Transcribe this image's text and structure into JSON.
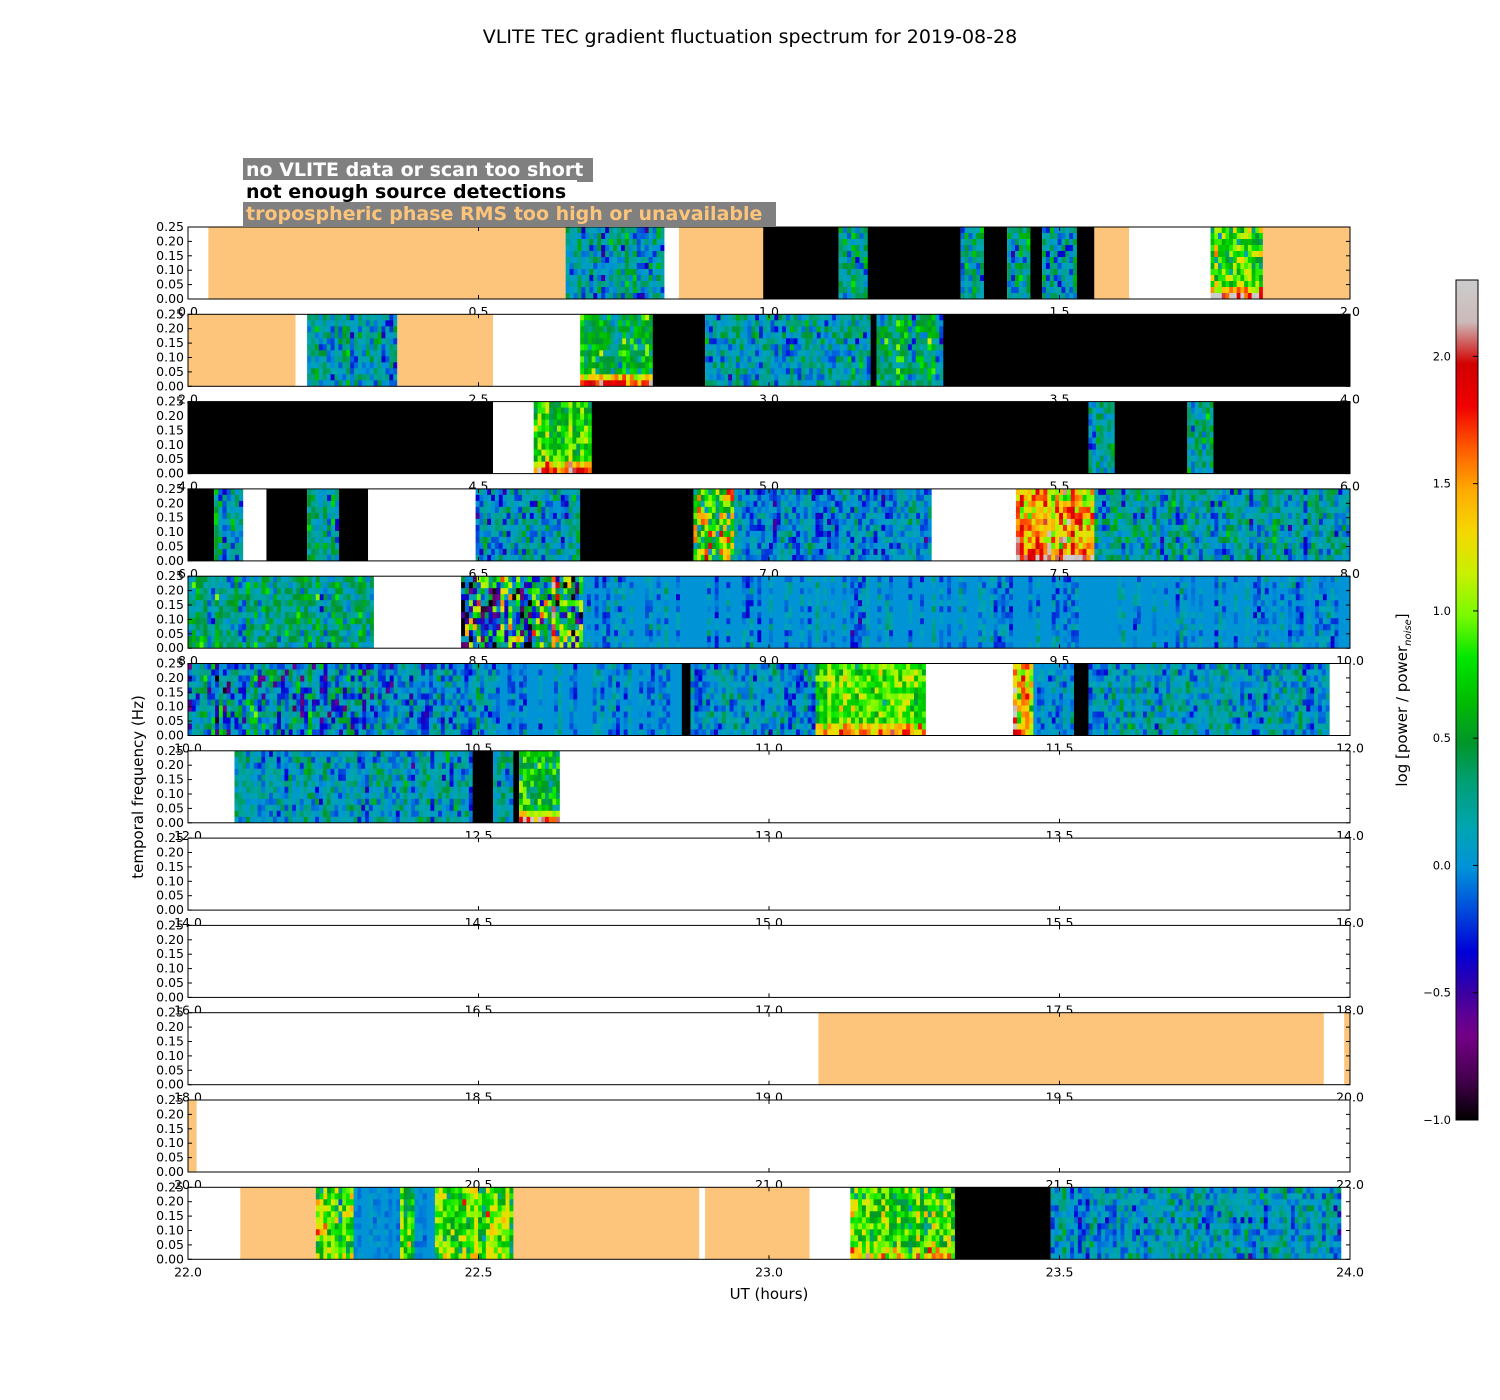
{
  "chart_data": {
    "type": "heatmap",
    "title": "VLITE TEC gradient fluctuation spectrum for 2019-08-28",
    "xlabel": "UT (hours)",
    "ylabel": "temporal frequency (Hz)",
    "colorbar_label": "log [power / power",
    "colorbar_label_sub": "noise",
    "colorbar_label_end": "]",
    "colorbar_range": [
      -1.0,
      2.3
    ],
    "colorbar_ticks": [
      "-1.0",
      "-0.5",
      "0.0",
      "0.5",
      "1.0",
      "1.5",
      "2.0"
    ],
    "colorbar_tick_values": [
      -1.0,
      -0.5,
      0.0,
      0.5,
      1.0,
      1.5,
      2.0
    ],
    "ylim": [
      0,
      0.25
    ],
    "y_ticks": [
      "0.00",
      "0.05",
      "0.10",
      "0.15",
      "0.20",
      "0.25"
    ],
    "y_tick_values": [
      0.0,
      0.05,
      0.1,
      0.15,
      0.2,
      0.25
    ],
    "legend": [
      {
        "text": "no VLITE data or scan too short",
        "text_color": "#ffffff",
        "box_color": "#808080"
      },
      {
        "text": "not enough source detections",
        "text_color": "#000000",
        "box_color": "#ffffff"
      },
      {
        "text": "tropospheric phase RMS too high or unavailable",
        "text_color": "#fdc47b",
        "box_color": "#808080"
      }
    ],
    "category_colors": {
      "no_data": "#ffffff",
      "not_enough_detections": "#000000",
      "tropo_high": "#fdc47b",
      "background_level": "#0092d8"
    },
    "panels": [
      {
        "xlim": [
          0,
          2
        ],
        "x_ticks": [
          "0.0",
          "0.5",
          "1.0",
          "1.5",
          "2.0"
        ],
        "segments": [
          {
            "start": 0.0,
            "end": 0.035,
            "kind": "no_data"
          },
          {
            "start": 0.035,
            "end": 0.65,
            "kind": "tropo_high"
          },
          {
            "start": 0.65,
            "end": 0.82,
            "kind": "spectrum",
            "mean": 0.1,
            "spread": 0.35
          },
          {
            "start": 0.82,
            "end": 0.845,
            "kind": "no_data"
          },
          {
            "start": 0.845,
            "end": 0.99,
            "kind": "tropo_high"
          },
          {
            "start": 0.99,
            "end": 1.12,
            "kind": "not_enough_detections"
          },
          {
            "start": 1.12,
            "end": 1.17,
            "kind": "spectrum",
            "mean": 0.3,
            "spread": 0.4
          },
          {
            "start": 1.17,
            "end": 1.33,
            "kind": "not_enough_detections"
          },
          {
            "start": 1.33,
            "end": 1.37,
            "kind": "spectrum",
            "mean": 0.2,
            "spread": 0.35
          },
          {
            "start": 1.37,
            "end": 1.41,
            "kind": "not_enough_detections"
          },
          {
            "start": 1.41,
            "end": 1.45,
            "kind": "spectrum",
            "mean": 0.25,
            "spread": 0.4
          },
          {
            "start": 1.45,
            "end": 1.47,
            "kind": "not_enough_detections"
          },
          {
            "start": 1.47,
            "end": 1.53,
            "kind": "spectrum",
            "mean": 0.15,
            "spread": 0.35
          },
          {
            "start": 1.53,
            "end": 1.56,
            "kind": "not_enough_detections"
          },
          {
            "start": 1.56,
            "end": 1.62,
            "kind": "tropo_high"
          },
          {
            "start": 1.62,
            "end": 1.76,
            "kind": "no_data"
          },
          {
            "start": 1.76,
            "end": 1.85,
            "kind": "spectrum",
            "mean": 0.75,
            "spread": 0.5,
            "low_boost": 1.2
          },
          {
            "start": 1.85,
            "end": 2.0,
            "kind": "tropo_high"
          }
        ]
      },
      {
        "xlim": [
          2,
          4
        ],
        "x_ticks": [
          "2.0",
          "2.5",
          "3.0",
          "3.5",
          "4.0"
        ],
        "segments": [
          {
            "start": 2.0,
            "end": 2.185,
            "kind": "tropo_high"
          },
          {
            "start": 2.185,
            "end": 2.205,
            "kind": "no_data"
          },
          {
            "start": 2.205,
            "end": 2.36,
            "kind": "spectrum",
            "mean": 0.15,
            "spread": 0.35
          },
          {
            "start": 2.36,
            "end": 2.525,
            "kind": "tropo_high"
          },
          {
            "start": 2.525,
            "end": 2.675,
            "kind": "no_data"
          },
          {
            "start": 2.675,
            "end": 2.8,
            "kind": "spectrum",
            "mean": 0.5,
            "spread": 0.35,
            "low_boost": 1.3
          },
          {
            "start": 2.8,
            "end": 2.89,
            "kind": "not_enough_detections"
          },
          {
            "start": 2.89,
            "end": 3.175,
            "kind": "spectrum",
            "mean": 0.15,
            "spread": 0.35
          },
          {
            "start": 3.175,
            "end": 3.185,
            "kind": "not_enough_detections"
          },
          {
            "start": 3.185,
            "end": 3.3,
            "kind": "spectrum",
            "mean": 0.35,
            "spread": 0.4
          },
          {
            "start": 3.3,
            "end": 4.0,
            "kind": "not_enough_detections"
          }
        ]
      },
      {
        "xlim": [
          4,
          6
        ],
        "x_ticks": [
          "4.0",
          "4.5",
          "5.0",
          "5.5",
          "6.0"
        ],
        "segments": [
          {
            "start": 4.0,
            "end": 4.525,
            "kind": "not_enough_detections"
          },
          {
            "start": 4.525,
            "end": 4.595,
            "kind": "no_data"
          },
          {
            "start": 4.595,
            "end": 4.695,
            "kind": "spectrum",
            "mean": 0.8,
            "spread": 0.35,
            "low_boost": 1.1
          },
          {
            "start": 4.695,
            "end": 5.55,
            "kind": "not_enough_detections"
          },
          {
            "start": 5.55,
            "end": 5.595,
            "kind": "spectrum",
            "mean": 0.15,
            "spread": 0.35
          },
          {
            "start": 5.595,
            "end": 5.72,
            "kind": "not_enough_detections"
          },
          {
            "start": 5.72,
            "end": 5.765,
            "kind": "spectrum",
            "mean": 0.15,
            "spread": 0.35
          },
          {
            "start": 5.765,
            "end": 6.0,
            "kind": "not_enough_detections"
          }
        ]
      },
      {
        "xlim": [
          6,
          8
        ],
        "x_ticks": [
          "6.0",
          "6.5",
          "7.0",
          "7.5",
          "8.0"
        ],
        "segments": [
          {
            "start": 6.0,
            "end": 6.045,
            "kind": "not_enough_detections"
          },
          {
            "start": 6.045,
            "end": 6.095,
            "kind": "spectrum",
            "mean": 0.2,
            "spread": 0.35
          },
          {
            "start": 6.095,
            "end": 6.135,
            "kind": "no_data"
          },
          {
            "start": 6.135,
            "end": 6.205,
            "kind": "not_enough_detections"
          },
          {
            "start": 6.205,
            "end": 6.26,
            "kind": "spectrum",
            "mean": 0.15,
            "spread": 0.35
          },
          {
            "start": 6.26,
            "end": 6.31,
            "kind": "not_enough_detections"
          },
          {
            "start": 6.31,
            "end": 6.495,
            "kind": "no_data"
          },
          {
            "start": 6.495,
            "end": 6.675,
            "kind": "spectrum",
            "mean": 0.1,
            "spread": 0.35
          },
          {
            "start": 6.675,
            "end": 6.87,
            "kind": "not_enough_detections"
          },
          {
            "start": 6.87,
            "end": 6.94,
            "kind": "spectrum",
            "mean": 0.9,
            "spread": 0.8
          },
          {
            "start": 6.94,
            "end": 7.28,
            "kind": "spectrum",
            "mean": 0.0,
            "spread": 0.3
          },
          {
            "start": 7.28,
            "end": 7.425,
            "kind": "no_data"
          },
          {
            "start": 7.425,
            "end": 7.56,
            "kind": "spectrum",
            "mean": 1.4,
            "spread": 0.5,
            "low_boost": 0.6
          },
          {
            "start": 7.56,
            "end": 8.0,
            "kind": "spectrum",
            "mean": 0.15,
            "spread": 0.35
          }
        ]
      },
      {
        "xlim": [
          8,
          10
        ],
        "x_ticks": [
          "8.0",
          "8.5",
          "9.0",
          "9.5",
          "10.0"
        ],
        "segments": [
          {
            "start": 8.0,
            "end": 8.32,
            "kind": "spectrum",
            "mean": 0.3,
            "spread": 0.35
          },
          {
            "start": 8.32,
            "end": 8.47,
            "kind": "no_data"
          },
          {
            "start": 8.47,
            "end": 8.68,
            "kind": "spectrum",
            "mean": 0.3,
            "spread": 1.1
          },
          {
            "start": 8.68,
            "end": 10.0,
            "kind": "spectrum",
            "mean": 0.0,
            "spread": 0.25
          }
        ]
      },
      {
        "xlim": [
          10,
          12
        ],
        "x_ticks": [
          "10.0",
          "10.5",
          "11.0",
          "11.5",
          "12.0"
        ],
        "segments": [
          {
            "start": 10.0,
            "end": 10.32,
            "kind": "spectrum",
            "mean": 0.05,
            "spread": 0.5
          },
          {
            "start": 10.32,
            "end": 10.53,
            "kind": "spectrum",
            "mean": 0.05,
            "spread": 0.35
          },
          {
            "start": 10.53,
            "end": 10.85,
            "kind": "spectrum",
            "mean": 0.0,
            "spread": 0.25
          },
          {
            "start": 10.85,
            "end": 10.865,
            "kind": "not_enough_detections"
          },
          {
            "start": 10.865,
            "end": 11.08,
            "kind": "spectrum",
            "mean": 0.05,
            "spread": 0.3
          },
          {
            "start": 11.08,
            "end": 11.27,
            "kind": "spectrum",
            "mean": 0.85,
            "spread": 0.35,
            "low_boost": 0.6
          },
          {
            "start": 11.27,
            "end": 11.42,
            "kind": "no_data"
          },
          {
            "start": 11.42,
            "end": 11.455,
            "kind": "spectrum",
            "mean": 1.3,
            "spread": 0.6
          },
          {
            "start": 11.455,
            "end": 11.525,
            "kind": "spectrum",
            "mean": 0.0,
            "spread": 0.25
          },
          {
            "start": 11.525,
            "end": 11.55,
            "kind": "not_enough_detections"
          },
          {
            "start": 11.55,
            "end": 11.965,
            "kind": "spectrum",
            "mean": 0.1,
            "spread": 0.3
          },
          {
            "start": 11.965,
            "end": 12.0,
            "kind": "no_data"
          }
        ]
      },
      {
        "xlim": [
          12,
          14
        ],
        "x_ticks": [
          "12.0",
          "12.5",
          "13.0",
          "13.5",
          "14.0"
        ],
        "segments": [
          {
            "start": 12.0,
            "end": 12.08,
            "kind": "no_data"
          },
          {
            "start": 12.08,
            "end": 12.49,
            "kind": "spectrum",
            "mean": 0.1,
            "spread": 0.3
          },
          {
            "start": 12.49,
            "end": 12.525,
            "kind": "not_enough_detections"
          },
          {
            "start": 12.525,
            "end": 12.56,
            "kind": "spectrum",
            "mean": 0.15,
            "spread": 0.3
          },
          {
            "start": 12.56,
            "end": 12.57,
            "kind": "not_enough_detections"
          },
          {
            "start": 12.57,
            "end": 12.64,
            "kind": "spectrum",
            "mean": 0.6,
            "spread": 0.4,
            "low_boost": 1.2
          },
          {
            "start": 12.64,
            "end": 14.0,
            "kind": "no_data"
          }
        ]
      },
      {
        "xlim": [
          14,
          16
        ],
        "x_ticks": [
          "14.0",
          "14.5",
          "15.0",
          "15.5",
          "16.0"
        ],
        "segments": [
          {
            "start": 14.0,
            "end": 16.0,
            "kind": "no_data"
          }
        ]
      },
      {
        "xlim": [
          16,
          18
        ],
        "x_ticks": [
          "16.0",
          "16.5",
          "17.0",
          "17.5",
          "18.0"
        ],
        "segments": [
          {
            "start": 16.0,
            "end": 18.0,
            "kind": "no_data"
          }
        ]
      },
      {
        "xlim": [
          18,
          20
        ],
        "x_ticks": [
          "18.0",
          "18.5",
          "19.0",
          "19.5",
          "20.0"
        ],
        "segments": [
          {
            "start": 18.0,
            "end": 19.085,
            "kind": "no_data"
          },
          {
            "start": 19.085,
            "end": 19.955,
            "kind": "tropo_high"
          },
          {
            "start": 19.955,
            "end": 19.99,
            "kind": "no_data"
          },
          {
            "start": 19.99,
            "end": 20.0,
            "kind": "tropo_high"
          }
        ]
      },
      {
        "xlim": [
          20,
          22
        ],
        "x_ticks": [
          "20.0",
          "20.5",
          "21.0",
          "21.5",
          "22.0"
        ],
        "segments": [
          {
            "start": 20.0,
            "end": 20.015,
            "kind": "tropo_high"
          },
          {
            "start": 20.015,
            "end": 22.0,
            "kind": "no_data"
          }
        ]
      },
      {
        "xlim": [
          22,
          24
        ],
        "x_ticks": [
          "22.0",
          "22.5",
          "23.0",
          "23.5",
          "24.0"
        ],
        "segments": [
          {
            "start": 22.0,
            "end": 22.09,
            "kind": "no_data"
          },
          {
            "start": 22.09,
            "end": 22.22,
            "kind": "tropo_high"
          },
          {
            "start": 22.22,
            "end": 22.285,
            "kind": "spectrum",
            "mean": 0.9,
            "spread": 0.5
          },
          {
            "start": 22.285,
            "end": 22.365,
            "kind": "spectrum",
            "mean": 0.0,
            "spread": 0.1
          },
          {
            "start": 22.365,
            "end": 22.39,
            "kind": "spectrum",
            "mean": 0.8,
            "spread": 0.5
          },
          {
            "start": 22.39,
            "end": 22.425,
            "kind": "spectrum",
            "mean": 0.0,
            "spread": 0.1
          },
          {
            "start": 22.425,
            "end": 22.56,
            "kind": "spectrum",
            "mean": 0.85,
            "spread": 0.45
          },
          {
            "start": 22.56,
            "end": 22.88,
            "kind": "tropo_high"
          },
          {
            "start": 22.88,
            "end": 22.89,
            "kind": "no_data"
          },
          {
            "start": 22.89,
            "end": 23.07,
            "kind": "tropo_high"
          },
          {
            "start": 23.07,
            "end": 23.14,
            "kind": "no_data"
          },
          {
            "start": 23.14,
            "end": 23.32,
            "kind": "spectrum",
            "mean": 0.85,
            "spread": 0.45,
            "low_boost": 0.5
          },
          {
            "start": 23.32,
            "end": 23.485,
            "kind": "not_enough_detections"
          },
          {
            "start": 23.485,
            "end": 23.985,
            "kind": "spectrum",
            "mean": 0.1,
            "spread": 0.3
          },
          {
            "start": 23.985,
            "end": 24.0,
            "kind": "no_data"
          }
        ]
      }
    ]
  }
}
